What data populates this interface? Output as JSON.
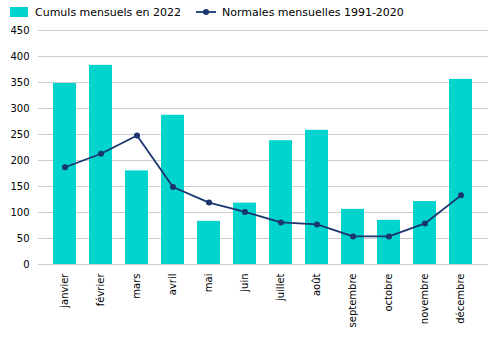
{
  "chart_data": {
    "type": "bar",
    "categories": [
      "janvier",
      "février",
      "mars",
      "avril",
      "mai",
      "juin",
      "juillet",
      "août",
      "septembre",
      "octobre",
      "novembre",
      "décembre"
    ],
    "series": [
      {
        "name": "Cumuls mensuels en 2022",
        "type": "bar",
        "color": "#00D4CC",
        "values": [
          348,
          383,
          180,
          287,
          83,
          118,
          238,
          258,
          106,
          85,
          121,
          356
        ]
      },
      {
        "name": "Normales mensuelles 1991-2020",
        "type": "line",
        "color": "#1A3570",
        "marker": "circle",
        "values": [
          187,
          213,
          248,
          149,
          119,
          101,
          81,
          77,
          54,
          54,
          79,
          133
        ]
      }
    ],
    "ylim": [
      0,
      450
    ],
    "yticks": [
      0,
      50,
      100,
      150,
      200,
      250,
      300,
      350,
      400,
      450
    ],
    "grid": true,
    "legend": "upper left"
  }
}
